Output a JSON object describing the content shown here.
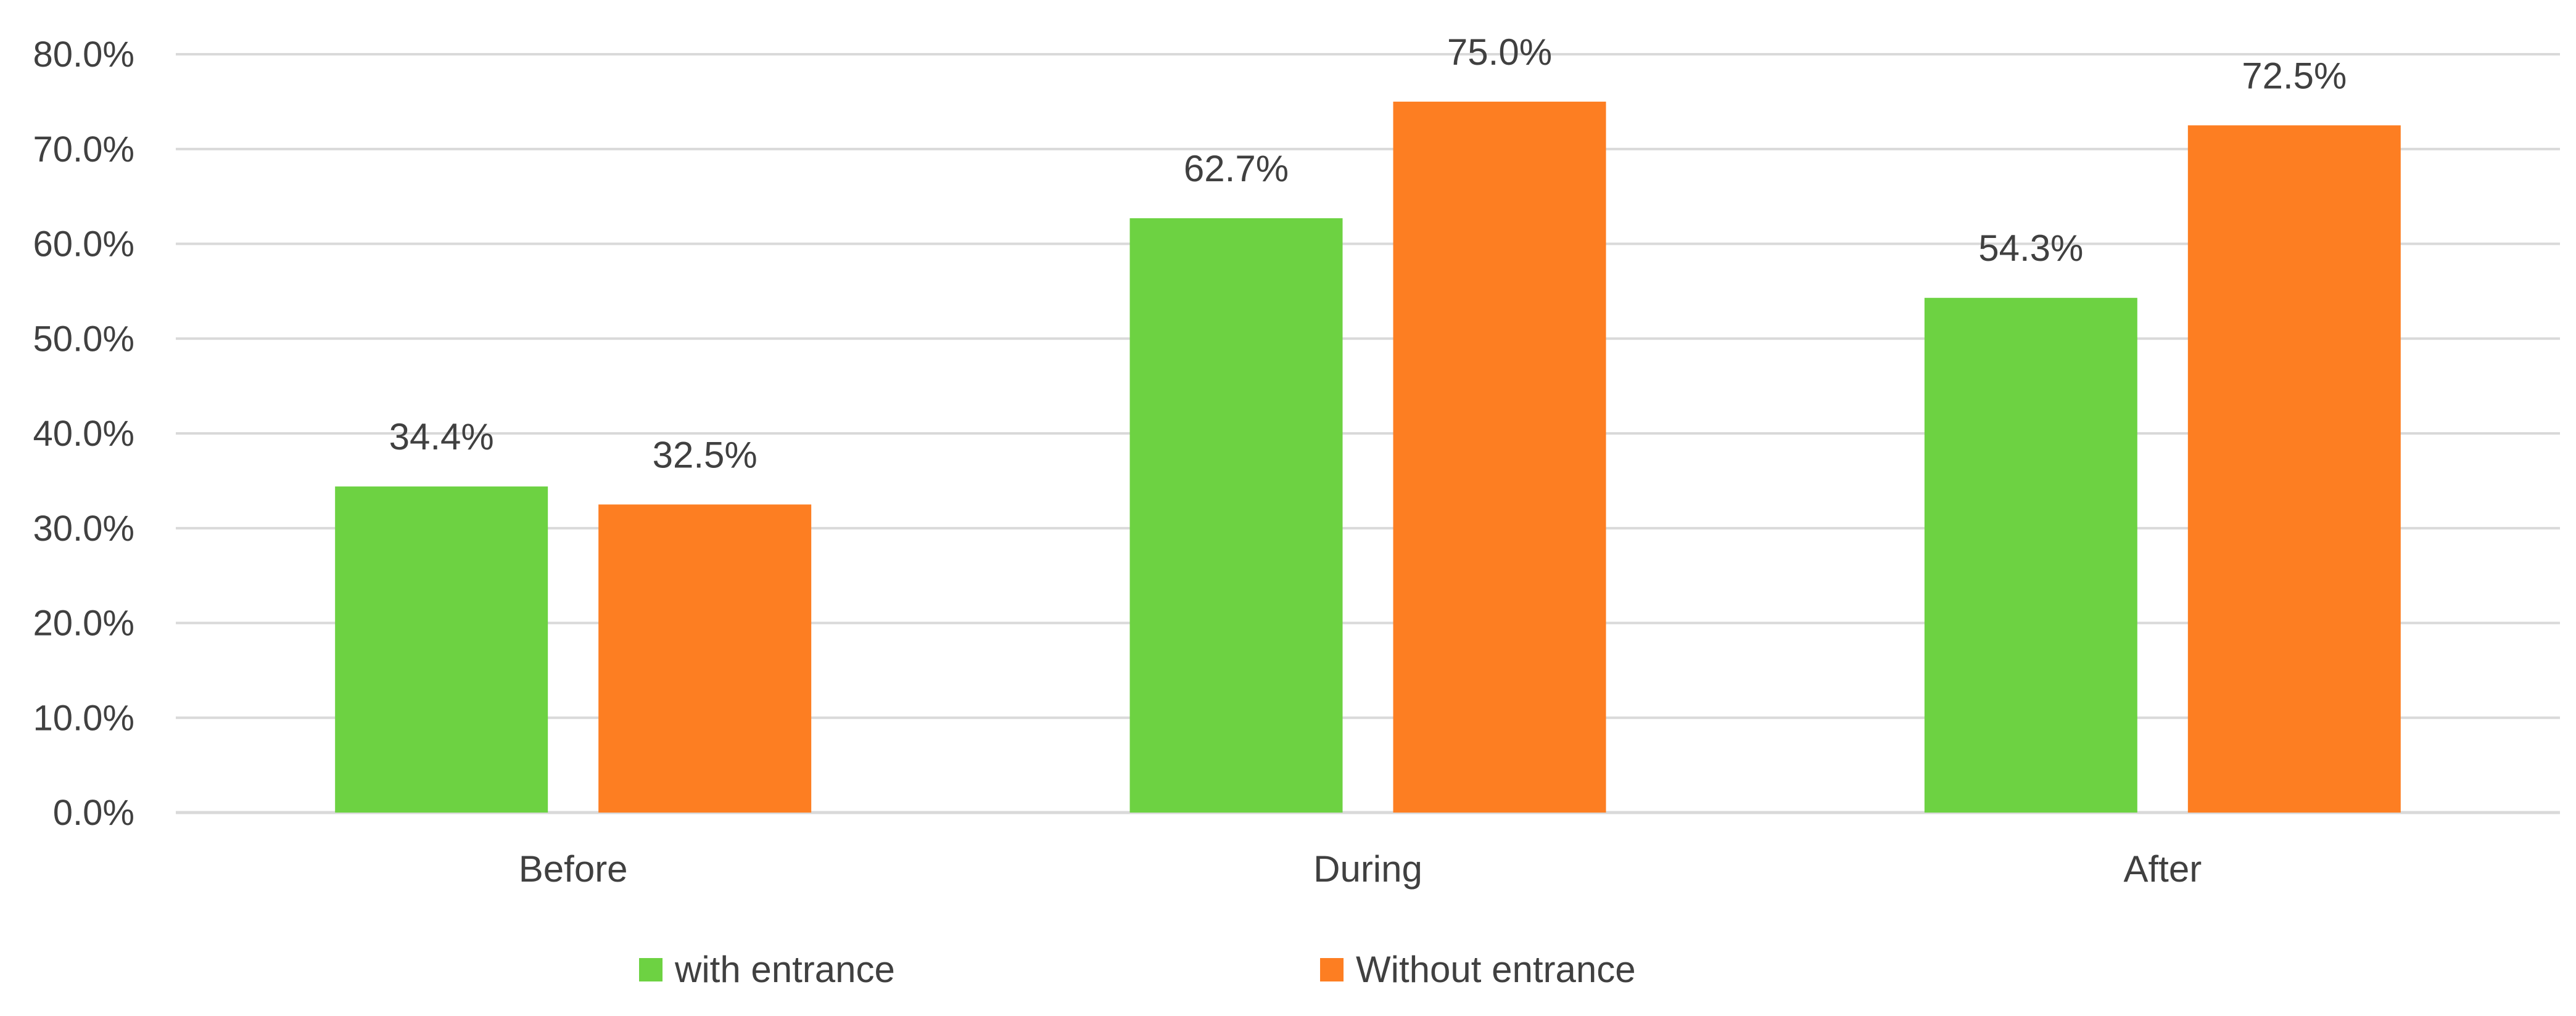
{
  "chart_data": {
    "type": "bar",
    "title": "",
    "xlabel": "",
    "ylabel": "",
    "categories": [
      "Before",
      "During",
      "After"
    ],
    "series": [
      {
        "name": "with entrance",
        "color": "#6dd242",
        "values": [
          34.4,
          62.7,
          54.3
        ],
        "labels": [
          "34.4%",
          "62.7%",
          "54.3%"
        ]
      },
      {
        "name": "Without entrance",
        "color": "#fd7e22",
        "values": [
          32.5,
          75.0,
          72.5
        ],
        "labels": [
          "32.5%",
          "75.0%",
          "72.5%"
        ]
      }
    ],
    "ylim": [
      0,
      80
    ],
    "yticks": [
      0,
      10,
      20,
      30,
      40,
      50,
      60,
      70,
      80
    ],
    "ytick_labels": [
      "0.0%",
      "10.0%",
      "20.0%",
      "30.0%",
      "40.0%",
      "50.0%",
      "60.0%",
      "70.0%",
      "80.0%"
    ],
    "grid": true,
    "legend": "bottom-center",
    "colors": {
      "grid": "#d9d9d9",
      "text": "#404040"
    }
  }
}
